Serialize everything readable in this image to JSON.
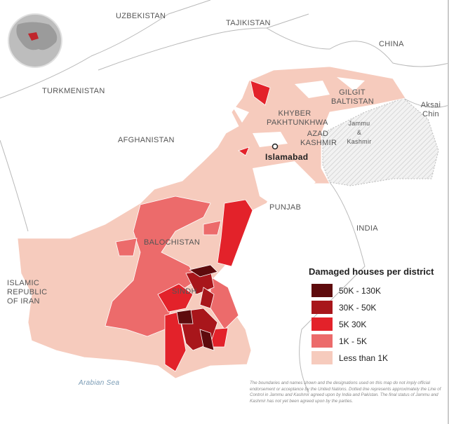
{
  "labels": {
    "uzbekistan": "UZBEKISTAN",
    "tajikistan": "TAJIKISTAN",
    "china": "CHINA",
    "turkmenistan": "TURKMENISTAN",
    "afghanistan": "AFGHANISTAN",
    "gilgit": "GILGIT BALTISTAN",
    "aksai": "Aksai Chin",
    "kp": "KHYBER PAKHTUNKHWA",
    "jk": "Jammu & Kashmir",
    "azad": "AZAD KASHMIR",
    "islamabad": "Islamabad",
    "punjab": "PUNJAB",
    "india": "INDIA",
    "balochistan": "BALOCHISTAN",
    "iran": "ISLAMIC REPUBLIC OF IRAN",
    "sindh": "SINDH",
    "sea": "Arabian Sea"
  },
  "legend": {
    "title": "Damaged houses per district",
    "items": [
      {
        "label": "50K - 130K",
        "color": "#5e0b0d"
      },
      {
        "label": "30K - 50K",
        "color": "#a8161b"
      },
      {
        "label": "5K   30K",
        "color": "#e3222a"
      },
      {
        "label": "1K - 5K",
        "color": "#ec6b6b"
      },
      {
        "label": "Less than 1K",
        "color": "#f6cbbd"
      }
    ]
  },
  "note": "The boundaries and names shown and the designations used on this map do not imply official endorsement or acceptance by the United Nations. Dotted line represents approximately the Line of Control in Jammu and Kashmir agreed upon by India and Pakistan. The final status of Jammu and Kashmir has not yet been agreed upon by the parties."
}
